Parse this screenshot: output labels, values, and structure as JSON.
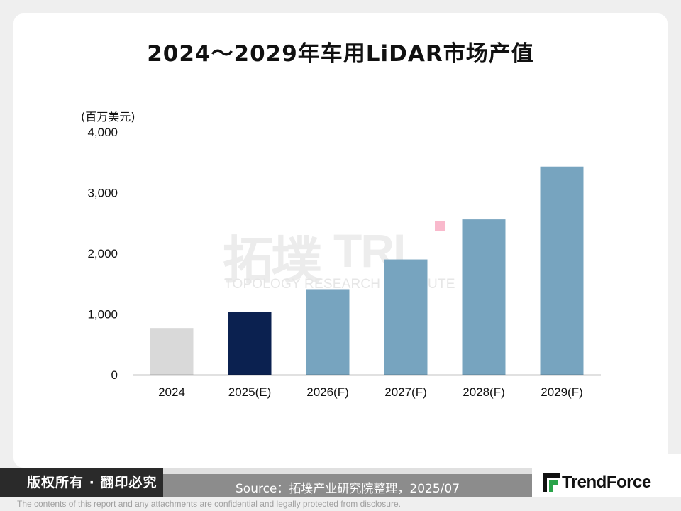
{
  "chart_data": {
    "type": "bar",
    "title": "2024～2029年车用LiDAR市场产值",
    "ylabel": "(百万美元)",
    "ylim": [
      0,
      4000
    ],
    "yticks": [
      "0",
      "1,000",
      "2,000",
      "3,000",
      "4,000"
    ],
    "categories": [
      "2024",
      "2025(E)",
      "2026(F)",
      "2027(F)",
      "2028(F)",
      "2029(F)"
    ],
    "values": [
      770,
      1040,
      1410,
      1900,
      2560,
      3430
    ],
    "colors": [
      "#d9d9d9",
      "#0b2150",
      "#77a4bf",
      "#77a4bf",
      "#77a4bf",
      "#77a4bf"
    ],
    "grid": false,
    "legend": "none"
  },
  "watermark": {
    "cn": "拓墣",
    "logo": "TRI",
    "en": "TOPOLOGY RESEARCH INSTITUTE"
  },
  "footer": {
    "copyright": "版权所有 · 翻印必究",
    "source": "Source：拓墣产业研究院整理，2025/07",
    "brand": "TrendForce",
    "disclaimer": "The contents of this report and any attachments are confidential and legally protected from disclosure."
  }
}
